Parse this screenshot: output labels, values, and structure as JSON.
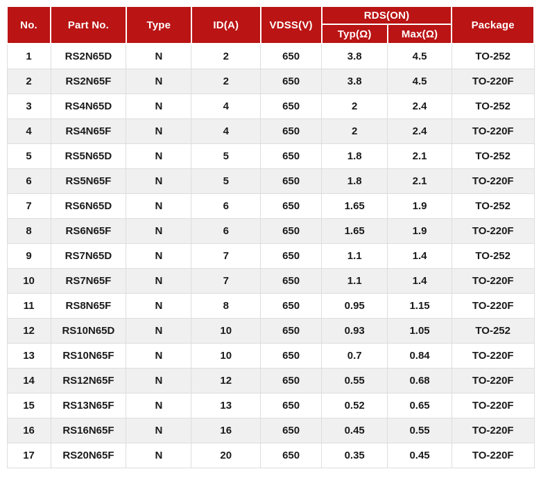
{
  "theme": {
    "header-bg": "#ba1414",
    "header-fg": "#ffffff",
    "body-fg": "#1a1a1a",
    "stripe-bg": "#f0f0f0",
    "grid-line": "#dddddd"
  },
  "table": {
    "columns": [
      {
        "key": "no",
        "label": "No."
      },
      {
        "key": "part_no",
        "label": "Part No."
      },
      {
        "key": "type",
        "label": "Type"
      },
      {
        "key": "id_a",
        "label": "ID(A)"
      },
      {
        "key": "vdss_v",
        "label": "VDSS(V)"
      },
      {
        "key": "rds_on",
        "label": "RDS(ON)",
        "subcolumns": [
          {
            "key": "typ_ohm",
            "label": "Typ(Ω)"
          },
          {
            "key": "max_ohm",
            "label": "Max(Ω)"
          }
        ]
      },
      {
        "key": "package",
        "label": "Package"
      }
    ],
    "rows": [
      [
        "1",
        "RS2N65D",
        "N",
        "2",
        "650",
        "3.8",
        "4.5",
        "TO-252"
      ],
      [
        "2",
        "RS2N65F",
        "N",
        "2",
        "650",
        "3.8",
        "4.5",
        "TO-220F"
      ],
      [
        "3",
        "RS4N65D",
        "N",
        "4",
        "650",
        "2",
        "2.4",
        "TO-252"
      ],
      [
        "4",
        "RS4N65F",
        "N",
        "4",
        "650",
        "2",
        "2.4",
        "TO-220F"
      ],
      [
        "5",
        "RS5N65D",
        "N",
        "5",
        "650",
        "1.8",
        "2.1",
        "TO-252"
      ],
      [
        "6",
        "RS5N65F",
        "N",
        "5",
        "650",
        "1.8",
        "2.1",
        "TO-220F"
      ],
      [
        "7",
        "RS6N65D",
        "N",
        "6",
        "650",
        "1.65",
        "1.9",
        "TO-252"
      ],
      [
        "8",
        "RS6N65F",
        "N",
        "6",
        "650",
        "1.65",
        "1.9",
        "TO-220F"
      ],
      [
        "9",
        "RS7N65D",
        "N",
        "7",
        "650",
        "1.1",
        "1.4",
        "TO-252"
      ],
      [
        "10",
        "RS7N65F",
        "N",
        "7",
        "650",
        "1.1",
        "1.4",
        "TO-220F"
      ],
      [
        "11",
        "RS8N65F",
        "N",
        "8",
        "650",
        "0.95",
        "1.15",
        "TO-220F"
      ],
      [
        "12",
        "RS10N65D",
        "N",
        "10",
        "650",
        "0.93",
        "1.05",
        "TO-252"
      ],
      [
        "13",
        "RS10N65F",
        "N",
        "10",
        "650",
        "0.7",
        "0.84",
        "TO-220F"
      ],
      [
        "14",
        "RS12N65F",
        "N",
        "12",
        "650",
        "0.55",
        "0.68",
        "TO-220F"
      ],
      [
        "15",
        "RS13N65F",
        "N",
        "13",
        "650",
        "0.52",
        "0.65",
        "TO-220F"
      ],
      [
        "16",
        "RS16N65F",
        "N",
        "16",
        "650",
        "0.45",
        "0.55",
        "TO-220F"
      ],
      [
        "17",
        "RS20N65F",
        "N",
        "20",
        "650",
        "0.35",
        "0.45",
        "TO-220F"
      ]
    ]
  }
}
